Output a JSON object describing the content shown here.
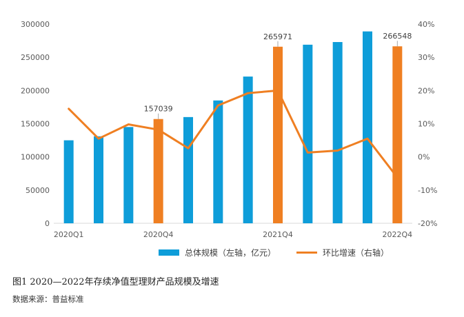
{
  "chart_data": {
    "type": "bar+line",
    "x": [
      "2020Q1",
      "2020Q2",
      "2020Q3",
      "2020Q4",
      "2021Q1",
      "2021Q2",
      "2021Q3",
      "2021Q4",
      "2022Q1",
      "2022Q2",
      "2022Q3",
      "2022Q4"
    ],
    "x_tick_labels": [
      "2020Q1",
      "",
      "",
      "2020Q4",
      "",
      "",
      "",
      "2021Q4",
      "",
      "",
      "",
      "2022Q4"
    ],
    "series": [
      {
        "name": "总体规模（左轴，亿元）",
        "type": "bar",
        "axis": "left",
        "values": [
          125000,
          131000,
          145000,
          157039,
          160000,
          185000,
          221000,
          265971,
          269000,
          273000,
          289000,
          266548
        ],
        "highlight": [
          false,
          false,
          false,
          true,
          false,
          false,
          false,
          true,
          false,
          false,
          false,
          true
        ],
        "color": "#0E9DD9",
        "highlight_color": "#EF7F22"
      },
      {
        "name": "环比增速（右轴）",
        "type": "line",
        "axis": "right",
        "values": [
          14.5,
          5.5,
          9.8,
          8.2,
          2.6,
          15.5,
          19.2,
          20.0,
          1.3,
          1.9,
          5.5,
          -6.2
        ],
        "color": "#EF7F22"
      }
    ],
    "data_labels": [
      {
        "index": 3,
        "text": "157039"
      },
      {
        "index": 7,
        "text": "265971"
      },
      {
        "index": 11,
        "text": "266548"
      }
    ],
    "y_left": {
      "min": 0,
      "max": 300000,
      "step": 50000,
      "ticks": [
        "0",
        "50000",
        "100000",
        "150000",
        "200000",
        "250000",
        "300000"
      ]
    },
    "y_right": {
      "min": -20,
      "max": 40,
      "step": 10,
      "ticks": [
        "-20%",
        "-10%",
        "0%",
        "10%",
        "20%",
        "30%",
        "40%"
      ]
    },
    "grid": false,
    "legend_position": "bottom"
  },
  "caption": "图1 2020—2022年存续净值型理财产品规模及增速",
  "source": "数据来源：普益标准"
}
